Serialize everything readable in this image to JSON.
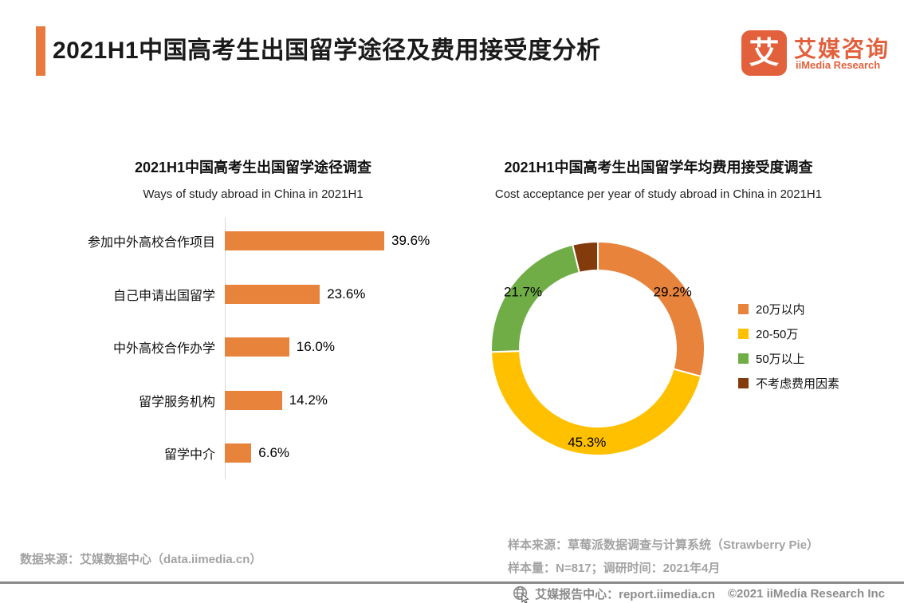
{
  "header": {
    "title": "2021H1中国高考生出国留学途径及费用接受度分析",
    "accent_color": "#E8793F",
    "logo": {
      "glyph": "艾",
      "name_cn": "艾媒咨询",
      "name_en": "iiMedia Research",
      "brand_color": "#E2603C"
    }
  },
  "chart_data": [
    {
      "type": "bar",
      "orientation": "horizontal",
      "title": "2021H1中国高考生出国留学途径调查",
      "subtitle": "Ways of study abroad in China in 2021H1",
      "categories": [
        "参加中外高校合作项目",
        "自己申请出国留学",
        "中外高校合作办学",
        "留学服务机构",
        "留学中介"
      ],
      "values": [
        39.6,
        23.6,
        16.0,
        14.2,
        6.6
      ],
      "value_labels": [
        "39.6%",
        "23.6%",
        "16.0%",
        "14.2%",
        "6.6%"
      ],
      "xlim": [
        0,
        45
      ],
      "bar_color": "#E8833B",
      "grid": false,
      "axis_line_color": "#D9D9D9"
    },
    {
      "type": "pie",
      "subtype": "donut",
      "title": "2021H1中国高考生出国留学年均费用接受度调查",
      "subtitle": "Cost acceptance per year of study abroad in China in 2021H1",
      "start_angle_deg": 0,
      "direction": "clockwise",
      "legend_position": "right",
      "slices": [
        {
          "label": "20万以内",
          "value": 29.2,
          "display": "29.2%",
          "color": "#E8833B"
        },
        {
          "label": "20-50万",
          "value": 45.3,
          "display": "45.3%",
          "color": "#FFC000"
        },
        {
          "label": "50万以上",
          "value": 21.7,
          "display": "21.7%",
          "color": "#70AD47"
        },
        {
          "label": "不考虑费用因素",
          "value": 3.8,
          "display": "",
          "color": "#843B0C"
        }
      ]
    }
  ],
  "footnotes": {
    "left": "数据来源：艾媒数据中心（data.iimedia.cn）",
    "right_line1": "样本来源：草莓派数据调查与计算系统（Strawberry Pie）",
    "right_line2": "样本量：N=817；调研时间：2021年4月"
  },
  "footer": {
    "report_center": "艾媒报告中心：report.iimedia.cn",
    "copyright": "©2021  iiMedia Research  Inc",
    "globe_icon_color": "#8C8C8C"
  }
}
